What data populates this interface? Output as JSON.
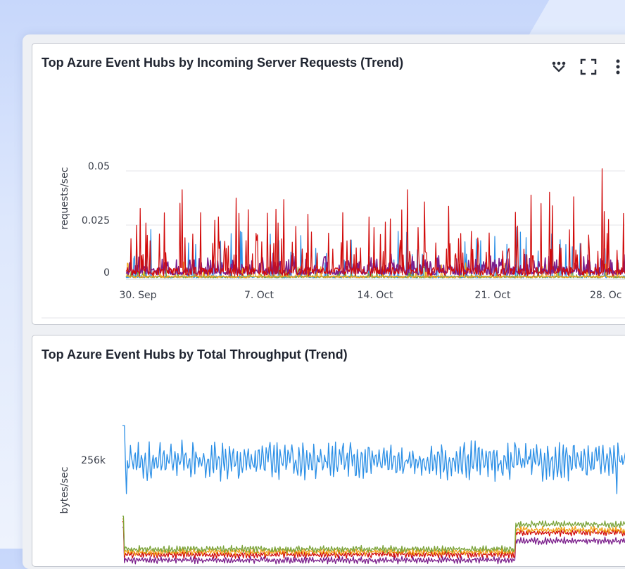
{
  "colors": {
    "red": "#d10a0a",
    "purple": "#7b1f8c",
    "orange": "#f2a31a",
    "green": "#7aa33a",
    "blue": "#2b8fe6",
    "darkred": "#9e0b0b"
  },
  "toolbar": {
    "icons": [
      "heart-toggle-icon",
      "expand-icon",
      "more-vertical-icon"
    ]
  },
  "panel1": {
    "title": "Top Azure Event Hubs by Incoming Server Requests (Trend)",
    "chart_data": {
      "type": "line",
      "title": "Top Azure Event Hubs by Incoming Server Requests (Trend)",
      "ylabel": "requests/sec",
      "xlabel": "",
      "x_ticks": [
        "30. Sep",
        "7. Oct",
        "14. Oct",
        "21. Oct",
        "28. Oc"
      ],
      "y_ticks": [
        "0",
        "0.025",
        "0.05"
      ],
      "ylim": [
        0,
        0.05
      ],
      "x_range": [
        "2023-09-29",
        "2023-10-29"
      ],
      "grid": true,
      "series": [
        {
          "color_key": "red",
          "baseline": 0.004,
          "spike_max": 0.042,
          "peak": {
            "date": "2023-10-28",
            "value": 0.051
          }
        },
        {
          "color_key": "purple",
          "baseline": 0.002,
          "spike_max": 0.012
        },
        {
          "color_key": "orange",
          "baseline": 0.001,
          "spike_max": 0.008
        },
        {
          "color_key": "green",
          "baseline": 0.001,
          "spike_max": 0.006
        },
        {
          "color_key": "blue",
          "baseline": 0.001,
          "spike_max": 0.024
        }
      ]
    }
  },
  "panel2": {
    "title": "Top Azure Event Hubs by Total Throughput (Trend)",
    "chart_data": {
      "type": "line",
      "title": "Top Azure Event Hubs by Total Throughput (Trend)",
      "ylabel": "bytes/sec",
      "xlabel": "",
      "y_ticks": [
        "256k"
      ],
      "grid": false,
      "series": [
        {
          "color_key": "blue",
          "level": 256000,
          "variation": 40000
        },
        {
          "color_key": "green",
          "level": 95000,
          "step_up": 140000
        },
        {
          "color_key": "orange",
          "level": 90000,
          "step_up": 130000
        },
        {
          "color_key": "red",
          "level": 85000,
          "step_up": 125000
        },
        {
          "color_key": "purple",
          "level": 75000,
          "step_up": 110000
        }
      ]
    }
  }
}
